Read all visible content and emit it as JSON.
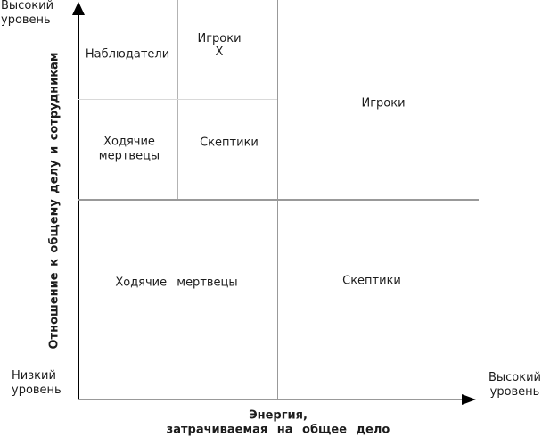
{
  "figure": {
    "background": "#ffffff",
    "text_color": "#1c1c1c",
    "axis_color": "#000000",
    "divider_color": "#999999",
    "minor_grid_vertical_color": "#b3b3b3",
    "minor_grid_horizontal_color": "#d9d9d9"
  },
  "y_axis": {
    "title_line1": "Отношение",
    "title_line2": "к общему делу и сотрудникам",
    "high_label_line1": "Высокий",
    "high_label_line2": "уровень",
    "low_label_line1": "Низкий",
    "low_label_line2": "уровень"
  },
  "x_axis": {
    "title_line1": "Энергия,",
    "title_line2": "затрачиваемая на общее дело",
    "high_label_line1": "Высокий",
    "high_label_line2": "уровень"
  },
  "quadrants": {
    "observers": "Наблюдатели",
    "players_x_line1": "Игроки",
    "players_x_line2": "Х",
    "walking_dead_small_line1": "Ходячие",
    "walking_dead_small_line2": "мертвецы",
    "skeptics_small": "Скептики",
    "players_large": "Игроки",
    "walking_dead_large": "Ходячие мертвецы",
    "skeptics_large": "Скептики"
  }
}
